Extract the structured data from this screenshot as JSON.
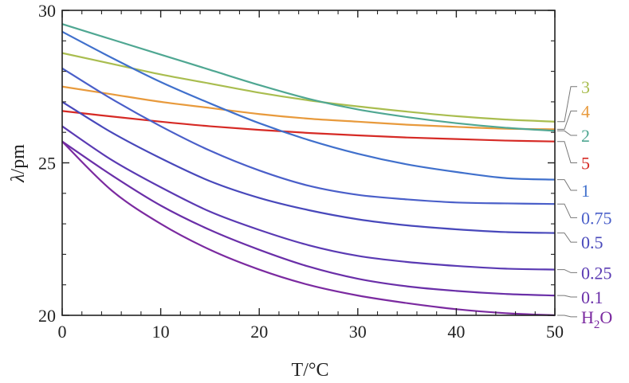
{
  "chart_data": {
    "type": "line",
    "xlabel": "T/°C",
    "ylabel_var": "λ",
    "ylabel_unit": "/pm",
    "xlim": [
      0,
      50
    ],
    "ylim": [
      20,
      30
    ],
    "xticks": [
      "0",
      "10",
      "20",
      "30",
      "40",
      "50"
    ],
    "yticks": [
      "20",
      "25",
      "30"
    ],
    "grid": false,
    "legend": "right-edge labels",
    "series": [
      {
        "name": "3",
        "color": "#a9bd4f",
        "label_y": 27.5,
        "x": [
          0,
          5,
          10,
          15,
          20,
          25,
          30,
          35,
          40,
          45,
          50
        ],
        "y": [
          28.6,
          28.25,
          27.9,
          27.6,
          27.3,
          27.05,
          26.85,
          26.68,
          26.53,
          26.42,
          26.35
        ]
      },
      {
        "name": "4",
        "color": "#e89a3c",
        "label_y": 26.7,
        "x": [
          0,
          5,
          10,
          15,
          20,
          25,
          30,
          35,
          40,
          45,
          50
        ],
        "y": [
          27.5,
          27.25,
          27.0,
          26.8,
          26.6,
          26.45,
          26.35,
          26.25,
          26.18,
          26.12,
          26.1
        ]
      },
      {
        "name": "2",
        "color": "#4fa792",
        "label_y": 25.9,
        "x": [
          0,
          5,
          10,
          15,
          20,
          25,
          30,
          35,
          40,
          45,
          50
        ],
        "y": [
          29.55,
          29.05,
          28.55,
          28.05,
          27.55,
          27.1,
          26.75,
          26.5,
          26.3,
          26.15,
          26.05
        ]
      },
      {
        "name": "5",
        "color": "#d62a25",
        "label_y": 25.0,
        "x": [
          0,
          5,
          10,
          15,
          20,
          25,
          30,
          35,
          40,
          45,
          50
        ],
        "y": [
          26.7,
          26.52,
          26.35,
          26.2,
          26.08,
          25.98,
          25.9,
          25.83,
          25.78,
          25.73,
          25.7
        ]
      },
      {
        "name": "1",
        "color": "#4070cc",
        "label_y": 24.1,
        "x": [
          0,
          5,
          10,
          15,
          20,
          25,
          30,
          35,
          40,
          45,
          50
        ],
        "y": [
          29.3,
          28.45,
          27.65,
          26.95,
          26.3,
          25.75,
          25.3,
          24.95,
          24.7,
          24.5,
          24.45
        ]
      },
      {
        "name": "0.75",
        "color": "#4a5fc9",
        "label_y": 23.2,
        "x": [
          0,
          5,
          10,
          15,
          20,
          25,
          30,
          35,
          40,
          45,
          50
        ],
        "y": [
          28.1,
          27.1,
          26.2,
          25.4,
          24.75,
          24.25,
          23.95,
          23.8,
          23.7,
          23.67,
          23.65
        ]
      },
      {
        "name": "0.5",
        "color": "#4848bb",
        "label_y": 22.4,
        "x": [
          0,
          5,
          10,
          15,
          20,
          25,
          30,
          35,
          40,
          45,
          50
        ],
        "y": [
          27.0,
          26.0,
          25.15,
          24.4,
          23.85,
          23.45,
          23.15,
          22.95,
          22.82,
          22.73,
          22.7
        ]
      },
      {
        "name": "0.25",
        "color": "#5a3ab3",
        "label_y": 21.4,
        "x": [
          0,
          5,
          10,
          15,
          20,
          25,
          30,
          35,
          40,
          45,
          50
        ],
        "y": [
          26.2,
          25.1,
          24.2,
          23.4,
          22.8,
          22.3,
          21.95,
          21.75,
          21.62,
          21.53,
          21.5
        ]
      },
      {
        "name": "0.1",
        "color": "#6a2fa8",
        "label_y": 20.6,
        "x": [
          0,
          5,
          10,
          15,
          20,
          25,
          30,
          35,
          40,
          45,
          50
        ],
        "y": [
          25.7,
          24.6,
          23.6,
          22.8,
          22.15,
          21.6,
          21.2,
          20.95,
          20.8,
          20.7,
          20.65
        ]
      },
      {
        "name": "H",
        "name_sub": "2",
        "name_rest": "O",
        "color": "#7b2aa0",
        "label_y": 19.95,
        "x": [
          0,
          5,
          10,
          15,
          20,
          25,
          30,
          35,
          40,
          45,
          50
        ],
        "y": [
          25.7,
          24.1,
          23.0,
          22.15,
          21.5,
          21.0,
          20.65,
          20.4,
          20.2,
          20.07,
          20.0
        ]
      }
    ]
  }
}
